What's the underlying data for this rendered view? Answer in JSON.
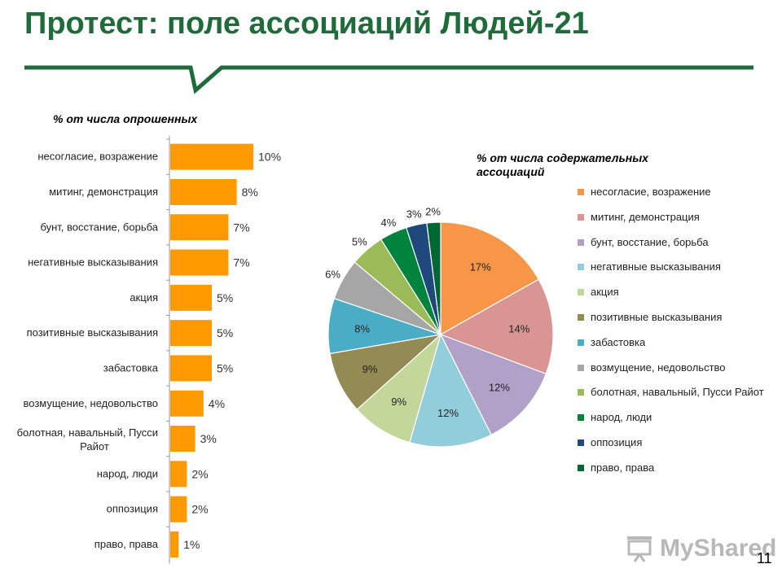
{
  "title": "Протест: поле ассоциаций Людей-21",
  "page_number": "11",
  "watermark": {
    "text": "MyShared",
    "icon": "projector-screen-icon"
  },
  "colors": {
    "title": "#1f6b3a",
    "rule": "#1f6b3a",
    "bars": "#ff9900"
  },
  "chart_data": [
    {
      "type": "bar",
      "orientation": "horizontal",
      "title": "% от числа опрошенных",
      "categories": [
        "несогласие, возражение",
        "митинг, демонстрация",
        "бунт, восстание, борьба",
        "негативные высказывания",
        "акция",
        "позитивные высказывания",
        "забастовка",
        "возмущение, недовольство",
        "болотная, навальный, Пусси Райот",
        "народ, люди",
        "оппозиция",
        "право, права"
      ],
      "values": [
        10,
        8,
        7,
        7,
        5,
        5,
        5,
        4,
        3,
        2,
        2,
        1
      ],
      "value_labels": [
        "10%",
        "8%",
        "7%",
        "7%",
        "5%",
        "5%",
        "5%",
        "4%",
        "3%",
        "2%",
        "2%",
        "1%"
      ],
      "xlim": [
        0,
        10
      ],
      "grid": false,
      "color": "#ff9900"
    },
    {
      "type": "pie",
      "title": "% от числа содержательных ассоциаций",
      "legend_position": "right",
      "start_angle": "top, clockwise",
      "slices": [
        {
          "label": "несогласие, возражение",
          "value": 17,
          "value_label": "17%",
          "color": "#f79646"
        },
        {
          "label": "митинг, демонстрация",
          "value": 14,
          "value_label": "14%",
          "color": "#d99594"
        },
        {
          "label": "бунт, восстание, борьба",
          "value": 12,
          "value_label": "12%",
          "color": "#b1a0c7"
        },
        {
          "label": "негативные высказывания",
          "value": 12,
          "value_label": "12%",
          "color": "#92cddc"
        },
        {
          "label": "акция",
          "value": 9,
          "value_label": "9%",
          "color": "#c4d79b"
        },
        {
          "label": "позитивные высказывания",
          "value": 9,
          "value_label": "9%",
          "color": "#948a54"
        },
        {
          "label": "забастовка",
          "value": 8,
          "value_label": "8%",
          "color": "#4bacc6"
        },
        {
          "label": "возмущение, недовольство",
          "value": 6,
          "value_label": "6%",
          "color": "#a6a6a6"
        },
        {
          "label": "болотная, навальный, Пусси Райот",
          "value": 5,
          "value_label": "5%",
          "color": "#9bbb59"
        },
        {
          "label": "народ, люди",
          "value": 4,
          "value_label": "4%",
          "color": "#00843d"
        },
        {
          "label": "оппозиция",
          "value": 3,
          "value_label": "3%",
          "color": "#1f497d"
        },
        {
          "label": "право, права",
          "value": 2,
          "value_label": "2%",
          "color": "#006633"
        }
      ]
    }
  ]
}
